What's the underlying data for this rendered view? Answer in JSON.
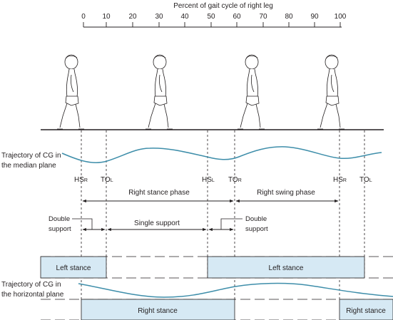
{
  "axis": {
    "title": "Percent of gait cycle of right leg",
    "ticks": [
      "0",
      "10",
      "20",
      "30",
      "40",
      "50",
      "60",
      "70",
      "80",
      "90",
      "100"
    ]
  },
  "labels": {
    "cg_median_line1": "Trajectory of CG in",
    "cg_median_line2": "the median plane",
    "cg_horizontal_line1": "Trajectory of CG in",
    "cg_horizontal_line2": "the horizontal plane"
  },
  "events": [
    {
      "main": "HS",
      "sub": "R"
    },
    {
      "main": "TO",
      "sub": "L"
    },
    {
      "main": "HS",
      "sub": "L"
    },
    {
      "main": "TO",
      "sub": "R"
    },
    {
      "main": "HS",
      "sub": "R"
    },
    {
      "main": "TO",
      "sub": "L"
    }
  ],
  "phases": {
    "right_stance": "Right stance phase",
    "right_swing": "Right swing phase",
    "single_support": "Single support",
    "double_support_left_1": "Double",
    "double_support_left_2": "support",
    "double_support_right_1": "Double",
    "double_support_right_2": "support"
  },
  "bars": {
    "left_stance_1": "Left stance",
    "left_stance_2": "Left stance",
    "right_stance_1": "Right stance",
    "right_stance_2": "Right stance"
  },
  "colors": {
    "curve": "#3e8eaa",
    "bar_fill": "#d6e9f4",
    "ink": "#231f20"
  },
  "icons": [
    "walking-child-figure"
  ]
}
